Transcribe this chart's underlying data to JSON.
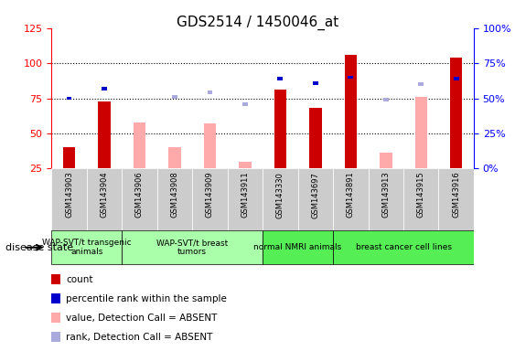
{
  "title": "GDS2514 / 1450046_at",
  "samples": [
    "GSM143903",
    "GSM143904",
    "GSM143906",
    "GSM143908",
    "GSM143909",
    "GSM143911",
    "GSM143330",
    "GSM143697",
    "GSM143891",
    "GSM143913",
    "GSM143915",
    "GSM143916"
  ],
  "count": [
    40,
    73,
    0,
    0,
    0,
    0,
    81,
    68,
    106,
    0,
    0,
    104
  ],
  "percentile_rank": [
    50,
    57,
    0,
    0,
    0,
    0,
    64,
    61,
    65,
    0,
    0,
    64
  ],
  "absent_value": [
    0,
    0,
    58,
    40,
    57,
    30,
    0,
    0,
    0,
    36,
    76,
    0
  ],
  "absent_rank": [
    0,
    0,
    0,
    51,
    54,
    46,
    0,
    0,
    0,
    49,
    60,
    0
  ],
  "groups": [
    {
      "label": "WAP-SVT/t transgenic\nanimals",
      "start": 0,
      "end": 2,
      "color": "#aaffaa"
    },
    {
      "label": "WAP-SVT/t breast\ntumors",
      "start": 2,
      "end": 6,
      "color": "#aaffaa"
    },
    {
      "label": "normal NMRI animals",
      "start": 6,
      "end": 8,
      "color": "#55ee55"
    },
    {
      "label": "breast cancer cell lines",
      "start": 8,
      "end": 12,
      "color": "#55ee55"
    }
  ],
  "ylim_left": [
    25,
    125
  ],
  "ylim_right": [
    0,
    100
  ],
  "count_color": "#cc0000",
  "rank_color": "#0000cc",
  "absent_val_color": "#ffaaaa",
  "absent_rank_color": "#aaaadd",
  "background_color": "#ffffff",
  "tick_bg_color": "#cccccc"
}
